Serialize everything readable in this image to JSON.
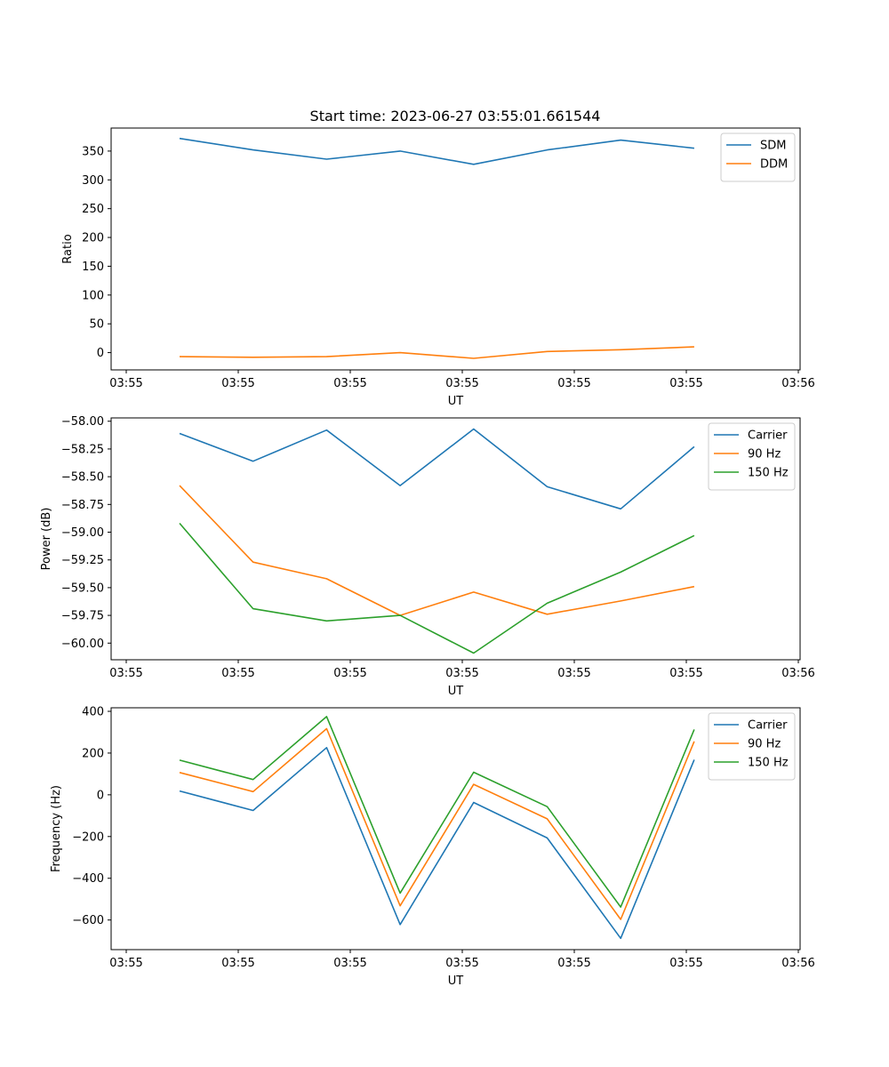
{
  "figure": {
    "title": "Start time: 2023-06-27 03:55:01.661544"
  },
  "chart_data": [
    {
      "type": "line",
      "title": "Start time: 2023-06-27 03:55:01.661544",
      "xlabel": "UT",
      "ylabel": "Ratio",
      "x_tick_labels": [
        "03:55",
        "03:55",
        "03:55",
        "03:55",
        "03:55",
        "03:55",
        "03:55",
        "03:56"
      ],
      "x": [
        1,
        2,
        3,
        4,
        5,
        6,
        7,
        8
      ],
      "xlim": [
        -0.2,
        8.95
      ],
      "ylim": [
        -30,
        390
      ],
      "yticks": [
        0,
        50,
        100,
        150,
        200,
        250,
        300,
        350
      ],
      "ytick_decimals": 0,
      "legend_loc": "upper right",
      "grid": false,
      "series": [
        {
          "name": "SDM",
          "color": "#1f77b4",
          "values": [
            372,
            352,
            336,
            350,
            327,
            352,
            369,
            355
          ]
        },
        {
          "name": "DDM",
          "color": "#ff7f0e",
          "values": [
            -7,
            -8,
            -7,
            0,
            -10,
            2,
            5,
            10
          ]
        }
      ]
    },
    {
      "type": "line",
      "title": "",
      "xlabel": "UT",
      "ylabel": "Power (dB)",
      "x_tick_labels": [
        "03:55",
        "03:55",
        "03:55",
        "03:55",
        "03:55",
        "03:55",
        "03:55",
        "03:56"
      ],
      "x": [
        1,
        2,
        3,
        4,
        5,
        6,
        7,
        8
      ],
      "xlim": [
        -0.2,
        8.95
      ],
      "ylim": [
        -60.15,
        -57.97
      ],
      "yticks": [
        -60.0,
        -59.75,
        -59.5,
        -59.25,
        -59.0,
        -58.75,
        -58.5,
        -58.25,
        -58.0
      ],
      "ytick_decimals": 2,
      "legend_loc": "upper right",
      "grid": false,
      "series": [
        {
          "name": "Carrier",
          "color": "#1f77b4",
          "values": [
            -58.11,
            -58.36,
            -58.08,
            -58.58,
            -58.07,
            -58.59,
            -58.79,
            -58.23
          ]
        },
        {
          "name": "90 Hz",
          "color": "#ff7f0e",
          "values": [
            -58.58,
            -59.27,
            -59.42,
            -59.75,
            -59.54,
            -59.74,
            -59.62,
            -59.49
          ]
        },
        {
          "name": "150 Hz",
          "color": "#2ca02c",
          "values": [
            -58.92,
            -59.69,
            -59.8,
            -59.75,
            -60.09,
            -59.64,
            -59.36,
            -59.03
          ]
        }
      ]
    },
    {
      "type": "line",
      "title": "",
      "xlabel": "UT",
      "ylabel": "Frequency (Hz)",
      "x_tick_labels": [
        "03:55",
        "03:55",
        "03:55",
        "03:55",
        "03:55",
        "03:55",
        "03:55",
        "03:56"
      ],
      "x": [
        1,
        2,
        3,
        4,
        5,
        6,
        7,
        8
      ],
      "xlim": [
        -0.2,
        8.95
      ],
      "ylim": [
        -742,
        417
      ],
      "yticks": [
        -600,
        -400,
        -200,
        0,
        200,
        400
      ],
      "ytick_decimals": 0,
      "legend_loc": "upper right",
      "grid": false,
      "series": [
        {
          "name": "Carrier",
          "color": "#1f77b4",
          "values": [
            18,
            -75,
            226,
            -622,
            -37,
            -207,
            -688,
            168
          ]
        },
        {
          "name": "90 Hz",
          "color": "#ff7f0e",
          "values": [
            107,
            15,
            317,
            -532,
            50,
            -115,
            -597,
            256
          ]
        },
        {
          "name": "150 Hz",
          "color": "#2ca02c",
          "values": [
            166,
            73,
            375,
            -471,
            108,
            -57,
            -538,
            313
          ]
        }
      ]
    }
  ]
}
